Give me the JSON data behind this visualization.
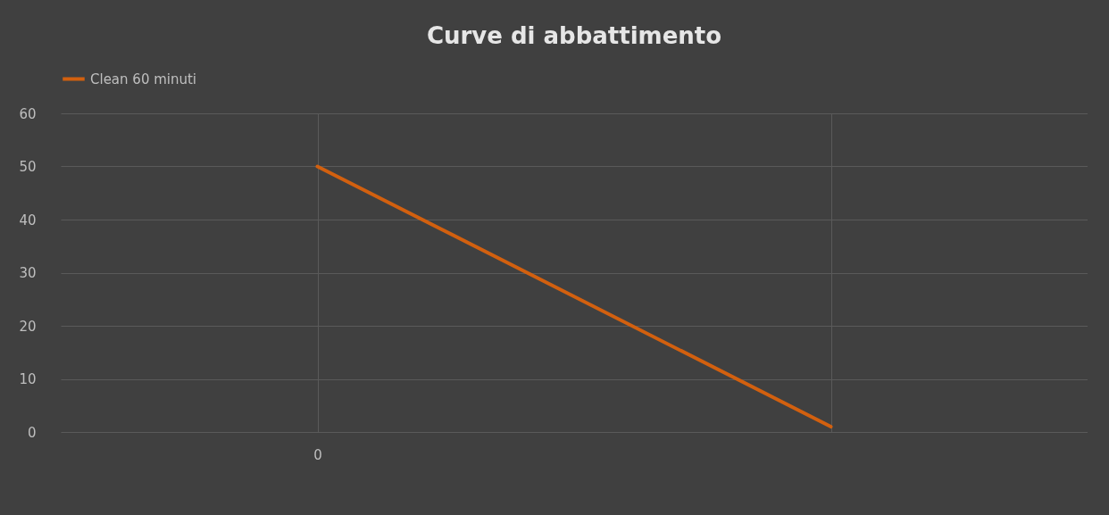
{
  "chart_data": {
    "type": "line",
    "title": "Curve di abbattimento",
    "categories": [
      "0",
      null
    ],
    "series": [
      {
        "name": "Clean 60 minuti",
        "color": "#d2600f",
        "values": [
          50,
          1
        ]
      }
    ],
    "ylim": [
      0,
      60
    ],
    "yticks": [
      0,
      10,
      20,
      30,
      40,
      50,
      60
    ],
    "grid": true,
    "legend": "top",
    "marker": "none",
    "line_style": "solid"
  }
}
